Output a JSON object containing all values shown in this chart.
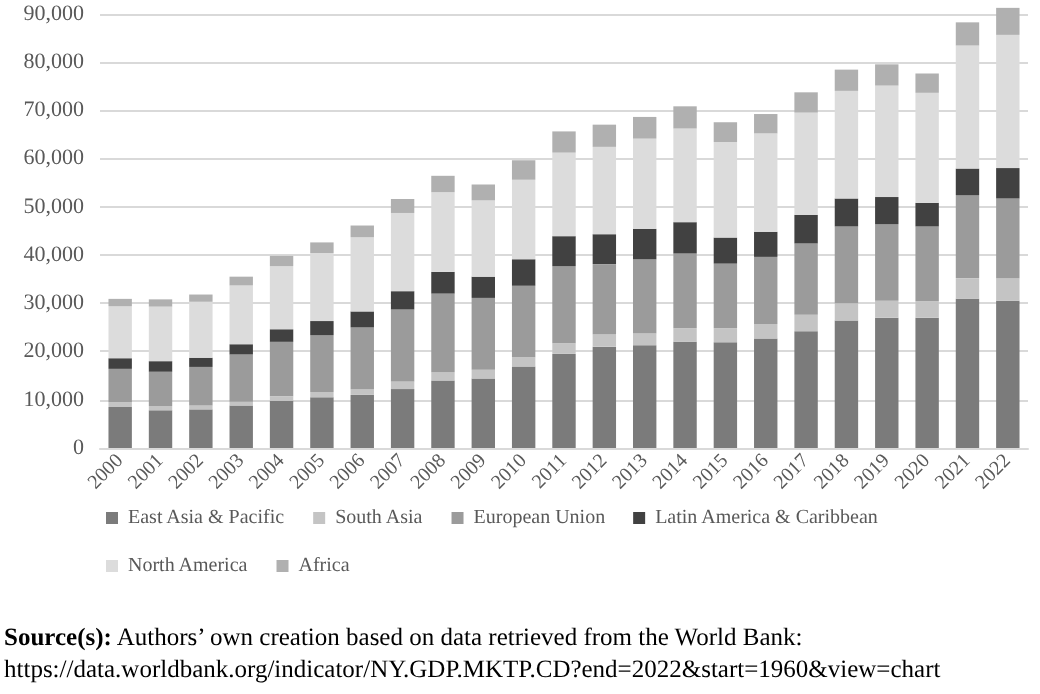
{
  "chart_data": {
    "type": "bar",
    "stacked": true,
    "categories": [
      "2000",
      "2001",
      "2002",
      "2003",
      "2004",
      "2005",
      "2006",
      "2007",
      "2008",
      "2009",
      "2010",
      "2011",
      "2012",
      "2013",
      "2014",
      "2015",
      "2016",
      "2017",
      "2018",
      "2019",
      "2020",
      "2021",
      "2022"
    ],
    "series": [
      {
        "name": "East Asia & Pacific",
        "color": "#7b7b7b",
        "values": [
          8500,
          7800,
          8000,
          8800,
          9800,
          10500,
          11000,
          12200,
          14000,
          14400,
          16900,
          19500,
          21000,
          21300,
          22000,
          21900,
          22700,
          24200,
          26400,
          27000,
          27000,
          30900,
          30500
        ]
      },
      {
        "name": "South Asia",
        "color": "#c4c4c4",
        "values": [
          1000,
          900,
          800,
          800,
          900,
          1100,
          1100,
          1600,
          1700,
          1800,
          1900,
          2200,
          2500,
          2500,
          2800,
          2900,
          3000,
          3400,
          3600,
          3500,
          3400,
          4300,
          4600
        ]
      },
      {
        "name": "European Union",
        "color": "#9b9b9b",
        "values": [
          6900,
          7100,
          8000,
          9800,
          11300,
          11800,
          12900,
          14900,
          16300,
          14900,
          14800,
          16000,
          14600,
          15300,
          15500,
          13400,
          13900,
          14800,
          15900,
          15900,
          15500,
          17200,
          16600
        ]
      },
      {
        "name": "Latin America & Caribbean",
        "color": "#414141",
        "values": [
          2200,
          2200,
          1900,
          2100,
          2600,
          2900,
          3300,
          3800,
          4500,
          4400,
          5500,
          6200,
          6200,
          6300,
          6500,
          5400,
          5200,
          5900,
          5800,
          5600,
          4900,
          5500,
          6300
        ]
      },
      {
        "name": "North America",
        "color": "#dcdcdc",
        "values": [
          10800,
          11300,
          11600,
          12200,
          13100,
          14100,
          15400,
          16200,
          16500,
          15800,
          16500,
          17300,
          18100,
          18700,
          19400,
          19800,
          20400,
          21200,
          22300,
          23100,
          22800,
          25500,
          27600
        ]
      },
      {
        "name": "Africa",
        "color": "#b0b0b0",
        "values": [
          1500,
          1500,
          1500,
          1800,
          2100,
          2200,
          2400,
          2900,
          3400,
          3300,
          4000,
          4400,
          4600,
          4500,
          4600,
          4100,
          4000,
          4200,
          4400,
          4400,
          4000,
          4800,
          5600
        ]
      }
    ],
    "ylim": [
      0,
      92000
    ],
    "yticks": [
      0,
      {
        "value": 10000,
        "label": "10,000"
      },
      {
        "value": 20000,
        "label": "20,000"
      },
      {
        "value": 30000,
        "label": "30,000"
      },
      {
        "value": 40000,
        "label": "40,000"
      },
      {
        "value": 50000,
        "label": "50,000"
      },
      {
        "value": 60000,
        "label": "60,000"
      },
      {
        "value": 70000,
        "label": "70,000"
      },
      {
        "value": 80000,
        "label": "80,000"
      },
      {
        "value": 90000,
        "label": "90,000"
      }
    ],
    "grid": "y",
    "legend": "bottom",
    "annotations": [
      "Source(s): Authors’ own creation based on data retrieved from the World Bank:",
      "https://data.worldbank.org/indicator/NY.GDP.MKTP.CD?end=2022&start=1960&view=chart"
    ]
  }
}
